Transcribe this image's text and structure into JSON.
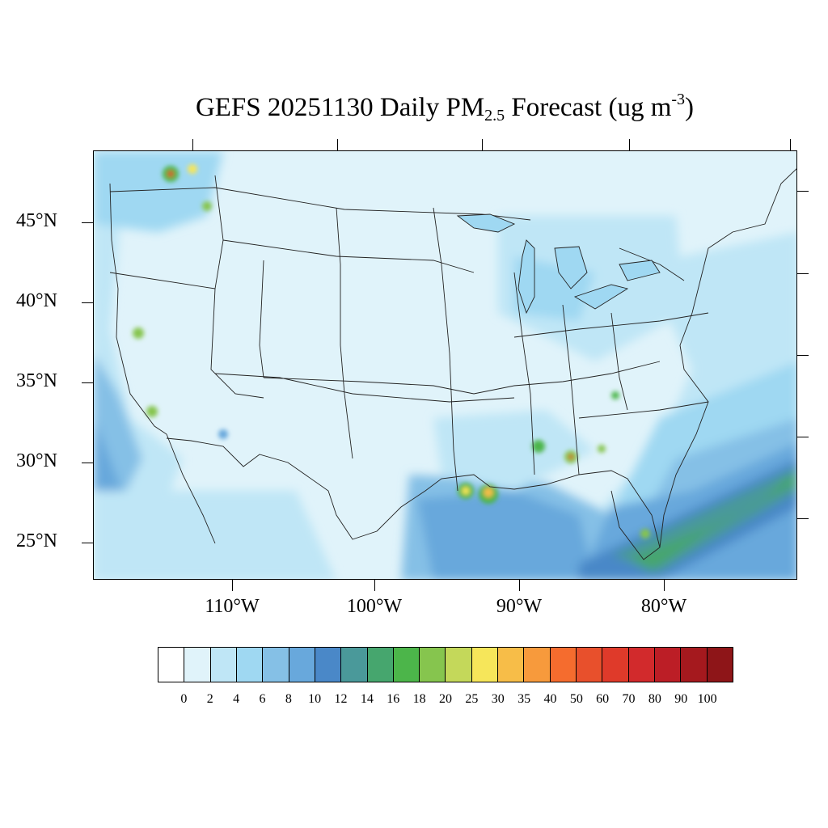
{
  "title": {
    "main": "GEFS 20251130 Daily PM",
    "sub": "2.5",
    "tail": " Forecast (ug m",
    "sup": "-3",
    "close": ")"
  },
  "axes": {
    "lat_labels": [
      "45°N",
      "40°N",
      "35°N",
      "30°N",
      "25°N"
    ],
    "lon_labels": [
      "110°W",
      "100°W",
      "90°W",
      "80°W"
    ]
  },
  "colorbar": {
    "labels": [
      "0",
      "2",
      "4",
      "6",
      "8",
      "10",
      "12",
      "14",
      "16",
      "18",
      "20",
      "25",
      "30",
      "35",
      "40",
      "50",
      "60",
      "70",
      "80",
      "90",
      "100"
    ],
    "colors": [
      "#ffffff",
      "#e0f3fa",
      "#bfe6f6",
      "#9fd8f2",
      "#85c0e6",
      "#68a8dc",
      "#4a88c8",
      "#4a999a",
      "#46a66e",
      "#4cb54a",
      "#86c54e",
      "#c4d85a",
      "#f6e65a",
      "#f7bd48",
      "#f79a3c",
      "#f56c2e",
      "#e8502c",
      "#df3a2a",
      "#d22a2c",
      "#bc1e26",
      "#a5191e",
      "#8e1518"
    ]
  },
  "map": {
    "background_color": "#e0f3fa",
    "ocean_color": "#bfe6f6",
    "hotspot_colors": [
      "#4cb54a",
      "#f6e65a",
      "#f7bd48",
      "#df3a2a"
    ]
  }
}
